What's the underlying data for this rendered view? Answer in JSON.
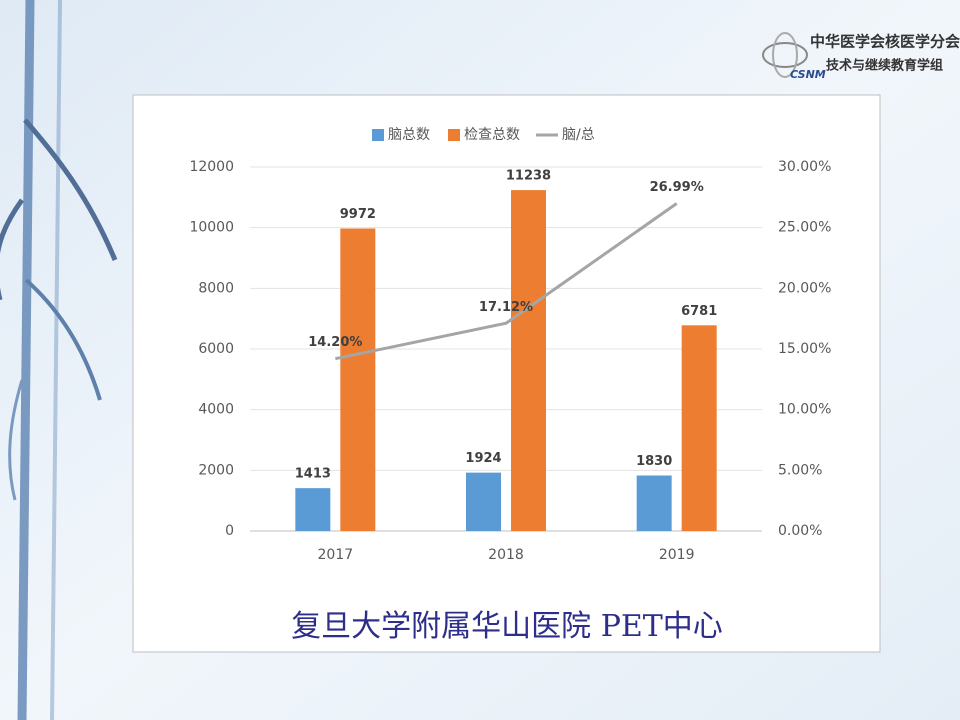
{
  "slide": {
    "logo_title": "中华医学会核医学分会",
    "logo_subtitle": "技术与继续教育学组",
    "logo_mark": "CSNM",
    "caption": "复旦大学附属华山医院 PET中心"
  },
  "chart_data": {
    "type": "bar",
    "categories": [
      "2017",
      "2018",
      "2019"
    ],
    "series": [
      {
        "name": "脑总数",
        "color": "#5b9bd5",
        "values": [
          1413,
          1924,
          1830
        ]
      },
      {
        "name": "检查总数",
        "color": "#ed7d31",
        "values": [
          9972,
          11238,
          6781
        ]
      },
      {
        "name": "脑/总",
        "color": "#a5a5a5",
        "type": "line",
        "axis": "y2",
        "values": [
          14.2,
          17.12,
          26.99
        ],
        "value_labels": [
          "14.20%",
          "17.12%",
          "26.99%"
        ]
      }
    ],
    "ylim": [
      0,
      12000
    ],
    "yticks": [
      0,
      2000,
      4000,
      6000,
      8000,
      10000,
      12000
    ],
    "y2lim": [
      0,
      30
    ],
    "y2ticks": [
      {
        "value": 0,
        "label": "0.00%"
      },
      {
        "value": 5,
        "label": "5.00%"
      },
      {
        "value": 10,
        "label": "10.00%"
      },
      {
        "value": 15,
        "label": "15.00%"
      },
      {
        "value": 20,
        "label": "20.00%"
      },
      {
        "value": 25,
        "label": "25.00%"
      },
      {
        "value": 30,
        "label": "30.00%"
      }
    ],
    "grid": true,
    "legend": "top"
  }
}
